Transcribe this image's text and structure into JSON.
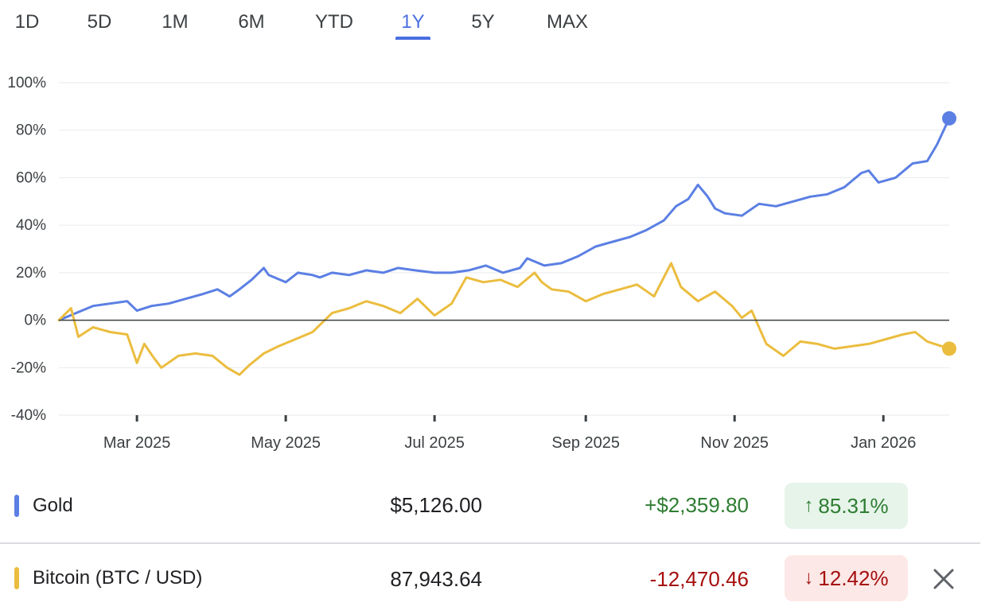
{
  "tabs": [
    {
      "label": "1D"
    },
    {
      "label": "5D"
    },
    {
      "label": "1M"
    },
    {
      "label": "6M"
    },
    {
      "label": "YTD"
    },
    {
      "label": "1Y"
    },
    {
      "label": "5Y"
    },
    {
      "label": "MAX"
    }
  ],
  "active_tab": "1Y",
  "colors": {
    "gold": "#5b7fe3",
    "bitcoin": "#ebbd3f",
    "active_tab": "#4a6ee0",
    "positive_text": "#2e7d32",
    "positive_bg": "#e6f4ea",
    "negative_text": "#a50e0e",
    "negative_bg": "#fce8e6"
  },
  "chart_data": {
    "type": "line",
    "xlabel": "",
    "ylabel": "",
    "ylim": [
      -40,
      100
    ],
    "y_ticks": [
      100,
      80,
      60,
      40,
      20,
      0,
      -20,
      -40
    ],
    "y_tick_labels": [
      "100%",
      "80%",
      "60%",
      "40%",
      "20%",
      "0%",
      "-20%",
      "-40%"
    ],
    "x_start": "2025-01-28",
    "x_end": "2026-01-28",
    "x_ticks": [
      {
        "date": "2025-03-01",
        "label": "Mar 2025"
      },
      {
        "date": "2025-05-01",
        "label": "May 2025"
      },
      {
        "date": "2025-07-01",
        "label": "Jul 2025"
      },
      {
        "date": "2025-09-01",
        "label": "Sep 2025"
      },
      {
        "date": "2025-11-01",
        "label": "Nov 2025"
      },
      {
        "date": "2026-01-01",
        "label": "Jan 2026"
      }
    ],
    "grid": true,
    "series": [
      {
        "name": "Gold",
        "color": "#5b7fe3",
        "points": [
          [
            "2025-01-28",
            0
          ],
          [
            "2025-02-04",
            3
          ],
          [
            "2025-02-11",
            6
          ],
          [
            "2025-02-18",
            7
          ],
          [
            "2025-02-25",
            8
          ],
          [
            "2025-03-01",
            4
          ],
          [
            "2025-03-07",
            6
          ],
          [
            "2025-03-14",
            7
          ],
          [
            "2025-03-21",
            9
          ],
          [
            "2025-03-28",
            11
          ],
          [
            "2025-04-03",
            13
          ],
          [
            "2025-04-08",
            10
          ],
          [
            "2025-04-12",
            13
          ],
          [
            "2025-04-17",
            17
          ],
          [
            "2025-04-22",
            22
          ],
          [
            "2025-04-24",
            19
          ],
          [
            "2025-05-01",
            16
          ],
          [
            "2025-05-06",
            20
          ],
          [
            "2025-05-12",
            19
          ],
          [
            "2025-05-15",
            18
          ],
          [
            "2025-05-20",
            20
          ],
          [
            "2025-05-27",
            19
          ],
          [
            "2025-06-03",
            21
          ],
          [
            "2025-06-10",
            20
          ],
          [
            "2025-06-16",
            22
          ],
          [
            "2025-06-23",
            21
          ],
          [
            "2025-07-01",
            20
          ],
          [
            "2025-07-08",
            20
          ],
          [
            "2025-07-15",
            21
          ],
          [
            "2025-07-22",
            23
          ],
          [
            "2025-07-29",
            20
          ],
          [
            "2025-08-05",
            22
          ],
          [
            "2025-08-08",
            26
          ],
          [
            "2025-08-15",
            23
          ],
          [
            "2025-08-22",
            24
          ],
          [
            "2025-08-29",
            27
          ],
          [
            "2025-09-05",
            31
          ],
          [
            "2025-09-12",
            33
          ],
          [
            "2025-09-19",
            35
          ],
          [
            "2025-09-26",
            38
          ],
          [
            "2025-10-03",
            42
          ],
          [
            "2025-10-08",
            48
          ],
          [
            "2025-10-13",
            51
          ],
          [
            "2025-10-17",
            57
          ],
          [
            "2025-10-21",
            52
          ],
          [
            "2025-10-24",
            47
          ],
          [
            "2025-10-28",
            45
          ],
          [
            "2025-11-04",
            44
          ],
          [
            "2025-11-11",
            49
          ],
          [
            "2025-11-18",
            48
          ],
          [
            "2025-11-25",
            50
          ],
          [
            "2025-12-02",
            52
          ],
          [
            "2025-12-09",
            53
          ],
          [
            "2025-12-16",
            56
          ],
          [
            "2025-12-23",
            62
          ],
          [
            "2025-12-26",
            63
          ],
          [
            "2025-12-30",
            58
          ],
          [
            "2026-01-06",
            60
          ],
          [
            "2026-01-13",
            66
          ],
          [
            "2026-01-19",
            67
          ],
          [
            "2026-01-23",
            74
          ],
          [
            "2026-01-28",
            85
          ]
        ]
      },
      {
        "name": "Bitcoin (BTC / USD)",
        "color": "#ebbd3f",
        "points": [
          [
            "2025-01-28",
            0
          ],
          [
            "2025-02-02",
            5
          ],
          [
            "2025-02-05",
            -7
          ],
          [
            "2025-02-11",
            -3
          ],
          [
            "2025-02-18",
            -5
          ],
          [
            "2025-02-25",
            -6
          ],
          [
            "2025-03-01",
            -18
          ],
          [
            "2025-03-04",
            -10
          ],
          [
            "2025-03-08",
            -16
          ],
          [
            "2025-03-11",
            -20
          ],
          [
            "2025-03-18",
            -15
          ],
          [
            "2025-03-25",
            -14
          ],
          [
            "2025-04-01",
            -15
          ],
          [
            "2025-04-07",
            -20
          ],
          [
            "2025-04-12",
            -23
          ],
          [
            "2025-04-16",
            -19
          ],
          [
            "2025-04-22",
            -14
          ],
          [
            "2025-04-28",
            -11
          ],
          [
            "2025-05-05",
            -8
          ],
          [
            "2025-05-12",
            -5
          ],
          [
            "2025-05-20",
            3
          ],
          [
            "2025-05-27",
            5
          ],
          [
            "2025-06-03",
            8
          ],
          [
            "2025-06-10",
            6
          ],
          [
            "2025-06-17",
            3
          ],
          [
            "2025-06-24",
            9
          ],
          [
            "2025-07-01",
            2
          ],
          [
            "2025-07-08",
            7
          ],
          [
            "2025-07-14",
            18
          ],
          [
            "2025-07-21",
            16
          ],
          [
            "2025-07-28",
            17
          ],
          [
            "2025-08-04",
            14
          ],
          [
            "2025-08-11",
            20
          ],
          [
            "2025-08-14",
            16
          ],
          [
            "2025-08-18",
            13
          ],
          [
            "2025-08-25",
            12
          ],
          [
            "2025-09-01",
            8
          ],
          [
            "2025-09-08",
            11
          ],
          [
            "2025-09-15",
            13
          ],
          [
            "2025-09-22",
            15
          ],
          [
            "2025-09-29",
            10
          ],
          [
            "2025-10-06",
            24
          ],
          [
            "2025-10-10",
            14
          ],
          [
            "2025-10-17",
            8
          ],
          [
            "2025-10-24",
            12
          ],
          [
            "2025-10-31",
            6
          ],
          [
            "2025-11-04",
            1
          ],
          [
            "2025-11-08",
            4
          ],
          [
            "2025-11-14",
            -10
          ],
          [
            "2025-11-21",
            -15
          ],
          [
            "2025-11-28",
            -9
          ],
          [
            "2025-12-05",
            -10
          ],
          [
            "2025-12-12",
            -12
          ],
          [
            "2025-12-19",
            -11
          ],
          [
            "2025-12-26",
            -10
          ],
          [
            "2026-01-02",
            -8
          ],
          [
            "2026-01-09",
            -6
          ],
          [
            "2026-01-14",
            -5
          ],
          [
            "2026-01-19",
            -9
          ],
          [
            "2026-01-28",
            -12
          ]
        ]
      }
    ]
  },
  "rows": [
    {
      "name": "Gold",
      "price": "$5,126.00",
      "change": "+$2,359.80",
      "pct_arrow": "↑",
      "pct": "85.31%"
    },
    {
      "name": "Bitcoin (BTC / USD)",
      "price": "87,943.64",
      "change": "-12,470.46",
      "pct_arrow": "↓",
      "pct": "12.42%"
    }
  ],
  "close_icon": "close-icon"
}
